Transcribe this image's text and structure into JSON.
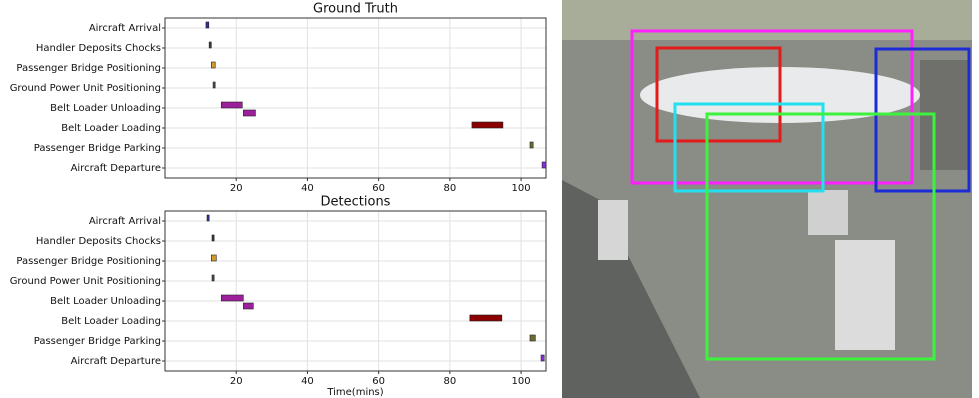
{
  "chart_data": [
    {
      "type": "gantt",
      "title": "Ground Truth",
      "categories": [
        "Aircraft Arrival",
        "Handler Deposits Chocks",
        "Passenger Bridge Positioning",
        "Ground Power Unit Positioning",
        "Belt Loader Unloading",
        "Belt Loader Loading",
        "Passenger Bridge Parking",
        "Aircraft Departure"
      ],
      "colors": [
        "#30309a",
        "#3a3a3a",
        "#d49a2c",
        "#4a4a4a",
        "#9c1f9c",
        "#8b0000",
        "#6b6b35",
        "#8a2be2"
      ],
      "values": [
        [
          [
            11.5,
            12.3
          ]
        ],
        [
          [
            12.4,
            13
          ]
        ],
        [
          [
            13,
            14.1
          ]
        ],
        [
          [
            13.5,
            14.1
          ]
        ],
        [
          [
            15.8,
            21.7
          ],
          [
            22,
            25.4
          ]
        ],
        [
          [
            86.2,
            94.9
          ]
        ],
        [
          [
            102.5,
            103.4
          ]
        ],
        [
          [
            105.9,
            107
          ]
        ]
      ],
      "xlim": [
        0,
        107
      ],
      "xticks": [
        20,
        40,
        60,
        80,
        100
      ],
      "grid": true
    },
    {
      "type": "gantt",
      "title": "Detections",
      "xlabel": "Time(mins)",
      "categories": [
        "Aircraft Arrival",
        "Handler Deposits Chocks",
        "Passenger Bridge Positioning",
        "Ground Power Unit Positioning",
        "Belt Loader Unloading",
        "Belt Loader Loading",
        "Passenger Bridge Parking",
        "Aircraft Departure"
      ],
      "colors": [
        "#30309a",
        "#3a3a3a",
        "#d49a2c",
        "#4a4a4a",
        "#9c1f9c",
        "#8b0000",
        "#6b6b35",
        "#8a2be2"
      ],
      "values": [
        [
          [
            11.8,
            12.4
          ]
        ],
        [
          [
            13.2,
            13.8
          ]
        ],
        [
          [
            13,
            14.4
          ]
        ],
        [
          [
            13.2,
            13.8
          ]
        ],
        [
          [
            15.8,
            22
          ],
          [
            22,
            24.8
          ]
        ],
        [
          [
            85.6,
            94.6
          ]
        ],
        [
          [
            102.5,
            104
          ]
        ],
        [
          [
            105.6,
            106.5
          ]
        ]
      ],
      "xlim": [
        0,
        107
      ],
      "xticks": [
        20,
        40,
        60,
        80,
        100
      ],
      "grid": true
    }
  ]
}
